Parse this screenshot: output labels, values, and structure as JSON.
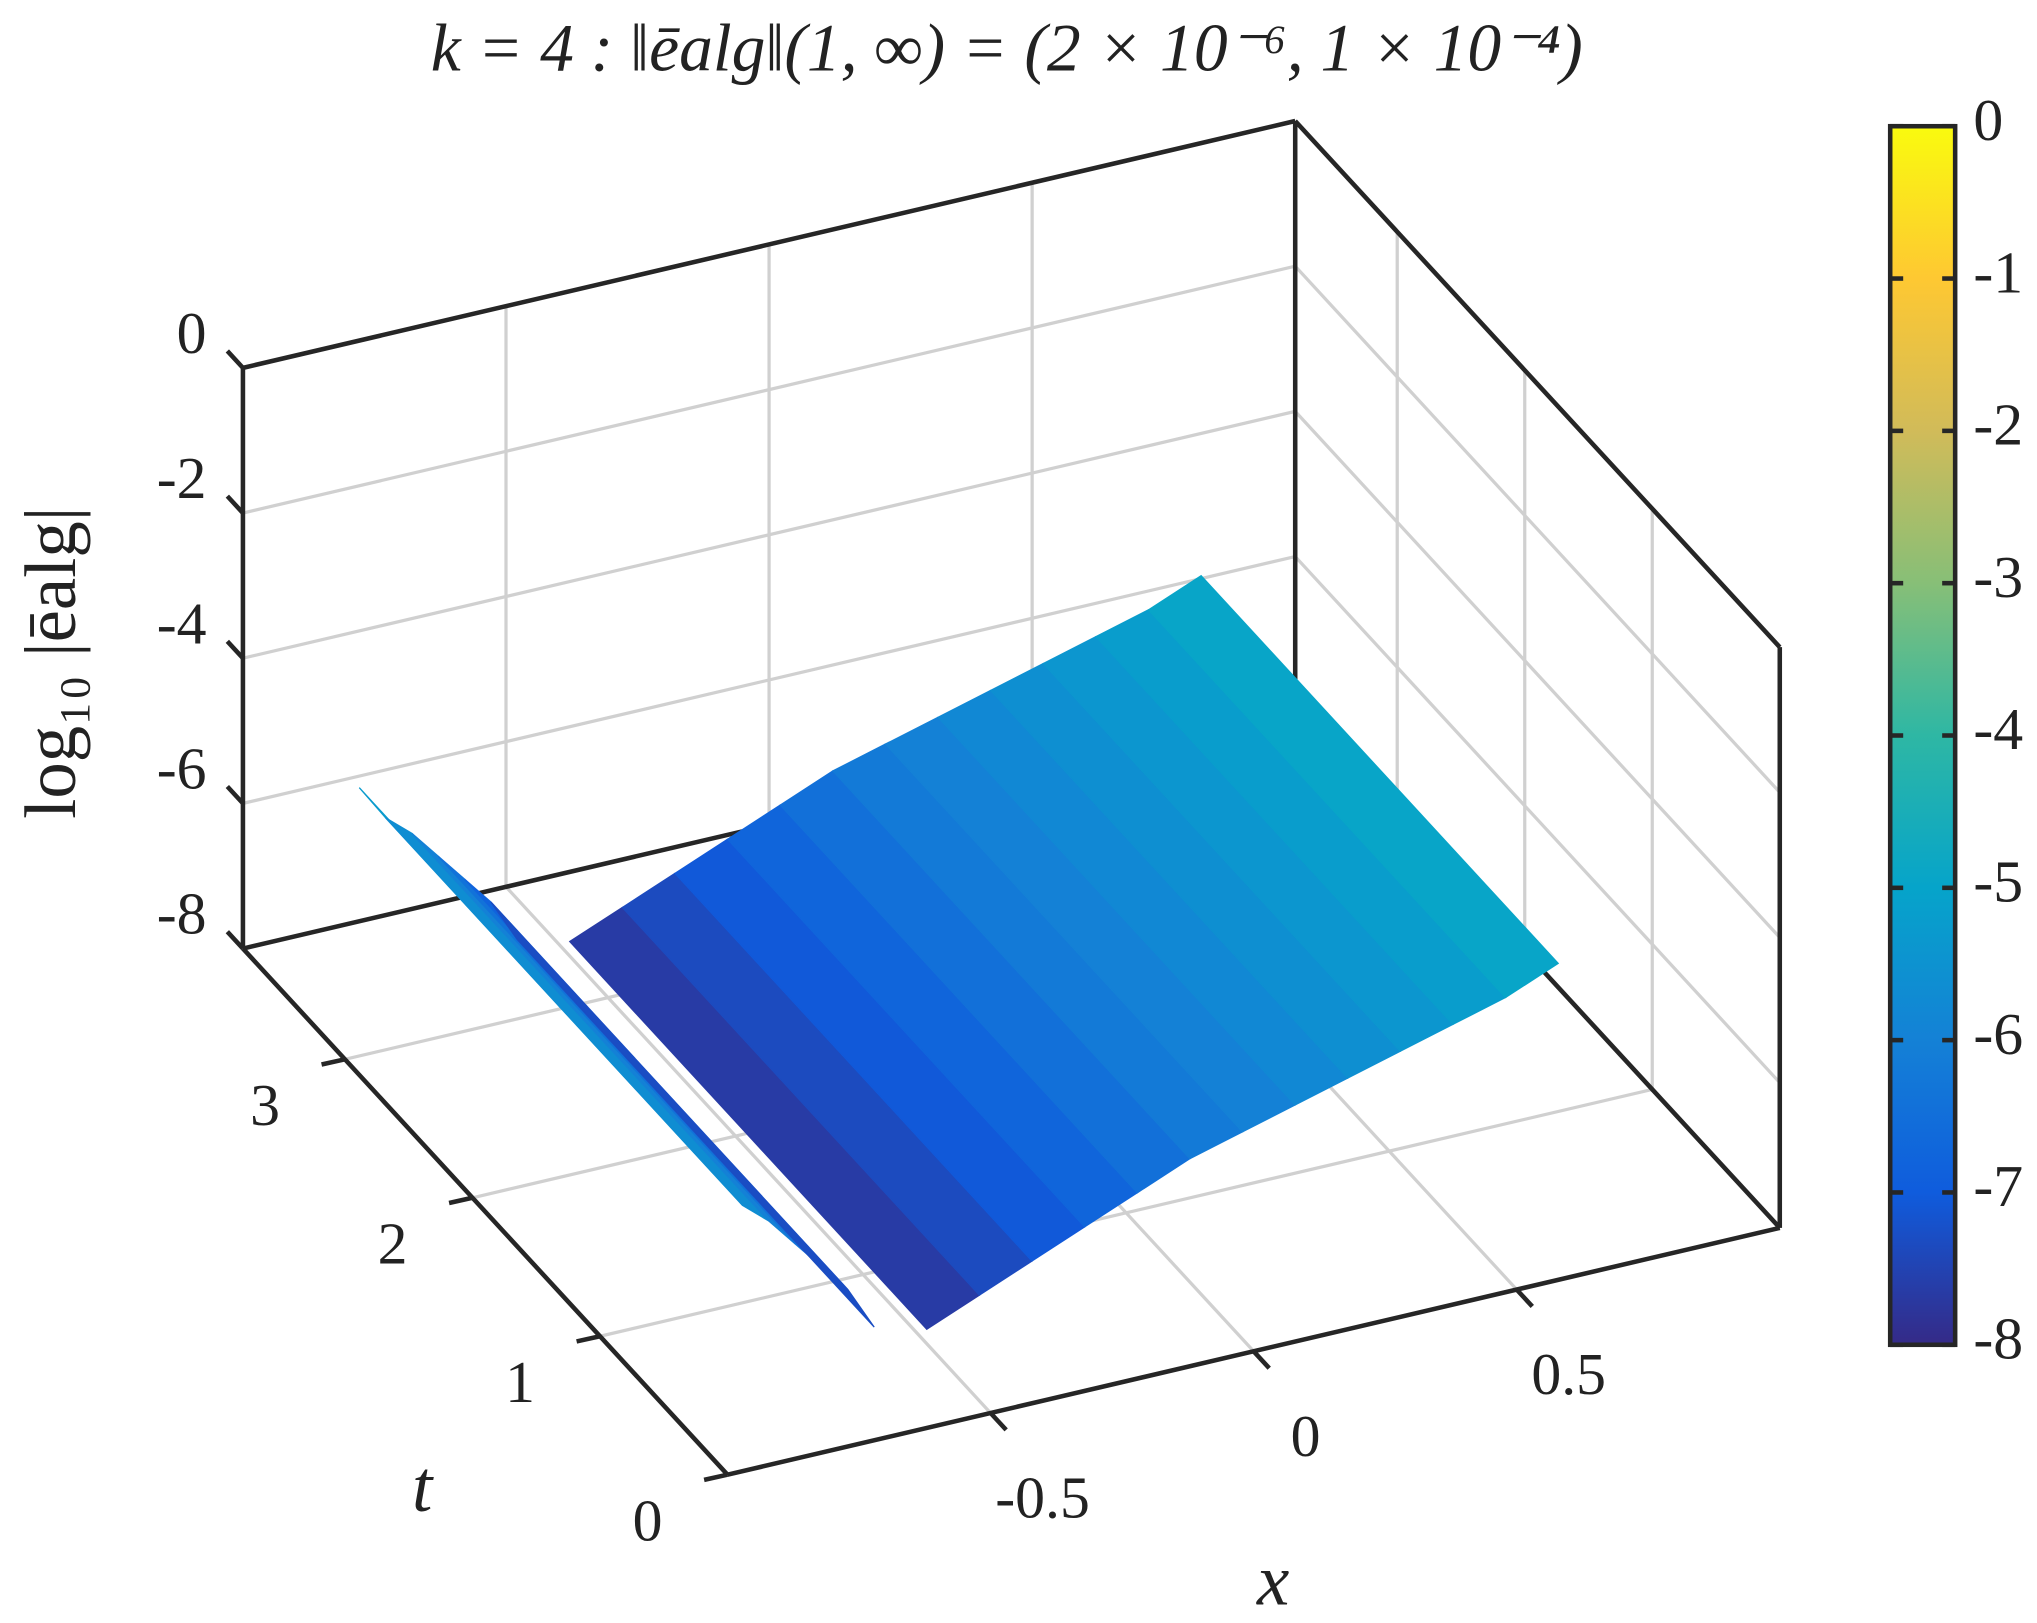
{
  "chart_data": {
    "type": "surface3d",
    "title": "k = 4 : ‖ēalg‖(1, ∞) = (2 × 10⁻⁶, 1 × 10⁻⁴)",
    "xlabel": "x",
    "ylabel": "t",
    "zlabel": "log₁₀ |ēalg|",
    "xlim": [
      -1,
      1
    ],
    "xticks": [
      -0.5,
      0,
      0.5
    ],
    "tlim": [
      0,
      3.8
    ],
    "tticks": [
      0,
      1,
      2,
      3
    ],
    "zlim": [
      -8,
      0
    ],
    "zticks": [
      -8,
      -6,
      -4,
      -2,
      0
    ],
    "clim": [
      -8,
      0
    ],
    "cticks": [
      -8,
      -7,
      -6,
      -5,
      -4,
      -3,
      -2,
      -1,
      0
    ],
    "colormap": [
      "#352a87",
      "#0f5cdd",
      "#1481d6",
      "#06a4ca",
      "#2eb7a4",
      "#87bf77",
      "#d1bb59",
      "#fec832",
      "#f9fb0e"
    ],
    "grid": true,
    "surface": {
      "x": [
        -0.9,
        -0.85,
        -0.8,
        -0.75,
        -0.7,
        -0.65,
        -0.6,
        -0.55,
        -0.5,
        -0.4,
        -0.3,
        -0.2,
        -0.1,
        0,
        0.1,
        0.2,
        0.3,
        0.4,
        0.5,
        0.6,
        0.7
      ],
      "t": [
        0.5,
        3.3
      ],
      "z": [
        -5,
        -5.5,
        -5.8,
        -6.2,
        -6.6,
        -7,
        -7.6,
        null,
        -7.8,
        -7.5,
        -7.2,
        -6.9,
        -6.6,
        -6.3,
        -6.1,
        -5.9,
        -5.7,
        -5.5,
        -5.3,
        -5.1,
        -4.8
      ]
    }
  }
}
